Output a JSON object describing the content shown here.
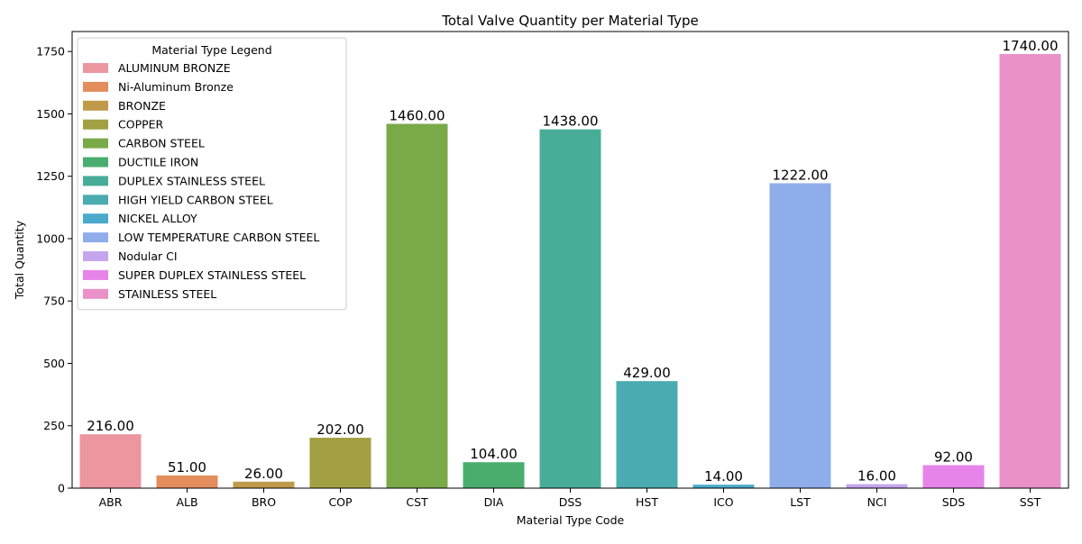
{
  "chart_data": {
    "type": "bar",
    "title": "Total Valve Quantity per Material Type",
    "xlabel": "Material Type Code",
    "ylabel": "Total Quantity",
    "ylim": [
      0,
      1830
    ],
    "yticks": [
      0,
      250,
      500,
      750,
      1000,
      1250,
      1500,
      1750
    ],
    "categories": [
      "ABR",
      "ALB",
      "BRO",
      "COP",
      "CST",
      "DIA",
      "DSS",
      "HST",
      "ICO",
      "LST",
      "NCI",
      "SDS",
      "SST"
    ],
    "values": [
      216,
      51,
      26,
      202,
      1460,
      104,
      1438,
      429,
      14,
      1222,
      16,
      92,
      1740
    ],
    "data_labels": [
      "216.00",
      "51.00",
      "26.00",
      "202.00",
      "1460.00",
      "104.00",
      "1438.00",
      "429.00",
      "14.00",
      "1222.00",
      "16.00",
      "92.00",
      "1740.00"
    ],
    "colors": [
      "#ec96a0",
      "#e38d5c",
      "#c09a4a",
      "#a2a042",
      "#7aaa48",
      "#4aad6e",
      "#48ad98",
      "#4aabb0",
      "#4baacc",
      "#8fadea",
      "#c4a5ee",
      "#e684e9",
      "#e991c8"
    ],
    "grid": false,
    "legend": {
      "title": "Material Type Legend",
      "placement": "top-left",
      "entries": [
        "ALUMINUM BRONZE",
        "Ni-Aluminum Bronze",
        "BRONZE",
        "COPPER",
        "CARBON STEEL",
        "DUCTILE IRON",
        "DUPLEX STAINLESS STEEL",
        "HIGH YIELD CARBON STEEL",
        "NICKEL ALLOY",
        "LOW TEMPERATURE CARBON STEEL",
        "Nodular CI",
        "SUPER DUPLEX STAINLESS STEEL",
        "STAINLESS STEEL"
      ]
    }
  }
}
